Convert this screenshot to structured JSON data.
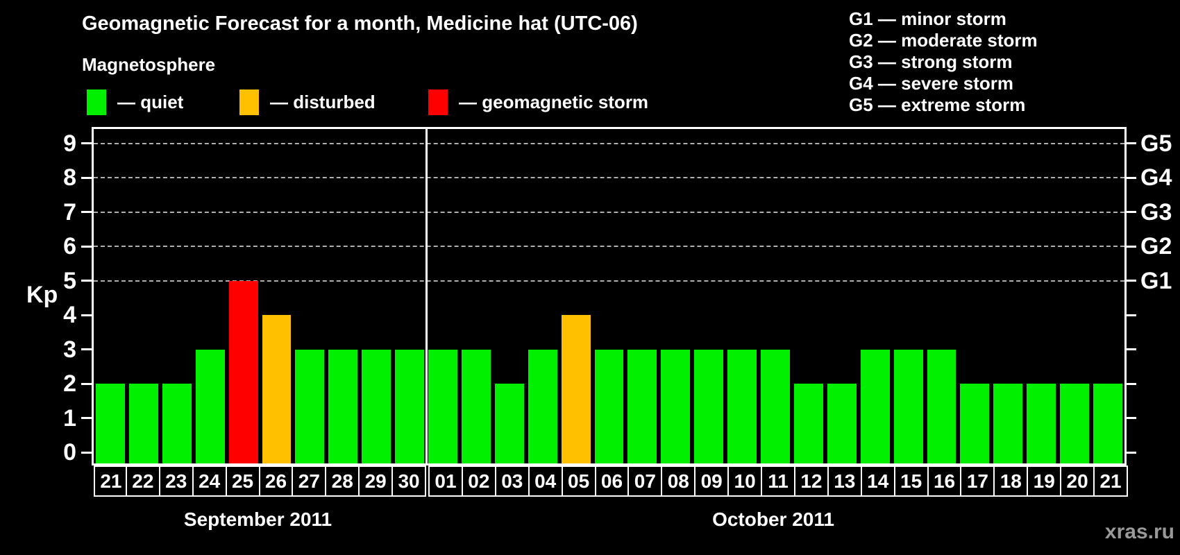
{
  "header": {
    "title": "Geomagnetic Forecast for a month, Medicine hat (UTC-06)",
    "subtitle": "Magnetosphere"
  },
  "legend": {
    "items": [
      {
        "key": "quiet",
        "label": "— quiet",
        "color": "#00f000"
      },
      {
        "key": "disturbed",
        "label": "— disturbed",
        "color": "#ffc000"
      },
      {
        "key": "storm",
        "label": "— geomagnetic storm",
        "color": "#ff0000"
      }
    ]
  },
  "g_scale_legend": {
    "items": [
      "G1 — minor storm",
      "G2 — moderate storm",
      "G3 — strong storm",
      "G4 — severe storm",
      "G5 — extreme storm"
    ]
  },
  "axes": {
    "y_label": "Kp",
    "y_ticks": [
      0,
      1,
      2,
      3,
      4,
      5,
      6,
      7,
      8,
      9
    ],
    "right_labels": [
      {
        "kp": 5,
        "label": "G1"
      },
      {
        "kp": 6,
        "label": "G2"
      },
      {
        "kp": 7,
        "label": "G3"
      },
      {
        "kp": 8,
        "label": "G4"
      },
      {
        "kp": 9,
        "label": "G5"
      }
    ],
    "grid_levels": [
      5,
      6,
      7,
      8,
      9
    ]
  },
  "watermark": "xras.ru",
  "chart_data": {
    "type": "bar",
    "title": "Geomagnetic Forecast for a month, Medicine hat (UTC-06)",
    "ylabel": "Kp",
    "ylim": [
      0,
      9.4
    ],
    "grid": "dashed horizontal lines at Kp 5,6,7,8,9 (G1–G5)",
    "legend_position": "top-left",
    "status_colors": {
      "quiet": "#00f000",
      "disturbed": "#ffc000",
      "storm": "#ff0000"
    },
    "months": [
      {
        "label": "September 2011",
        "days": [
          "21",
          "22",
          "23",
          "24",
          "25",
          "26",
          "27",
          "28",
          "29",
          "30"
        ],
        "values": [
          2,
          2,
          2,
          3,
          5,
          4,
          3,
          3,
          3,
          3
        ],
        "statuses": [
          "quiet",
          "quiet",
          "quiet",
          "quiet",
          "storm",
          "disturbed",
          "quiet",
          "quiet",
          "quiet",
          "quiet"
        ]
      },
      {
        "label": "October 2011",
        "days": [
          "01",
          "02",
          "03",
          "04",
          "05",
          "06",
          "07",
          "08",
          "09",
          "10",
          "11",
          "12",
          "13",
          "14",
          "15",
          "16",
          "17",
          "18",
          "19",
          "20",
          "21"
        ],
        "values": [
          3,
          3,
          2,
          3,
          4,
          3,
          3,
          3,
          3,
          3,
          3,
          2,
          2,
          3,
          3,
          3,
          2,
          2,
          2,
          2,
          2
        ],
        "statuses": [
          "quiet",
          "quiet",
          "quiet",
          "quiet",
          "disturbed",
          "quiet",
          "quiet",
          "quiet",
          "quiet",
          "quiet",
          "quiet",
          "quiet",
          "quiet",
          "quiet",
          "quiet",
          "quiet",
          "quiet",
          "quiet",
          "quiet",
          "quiet",
          "quiet"
        ]
      }
    ]
  }
}
